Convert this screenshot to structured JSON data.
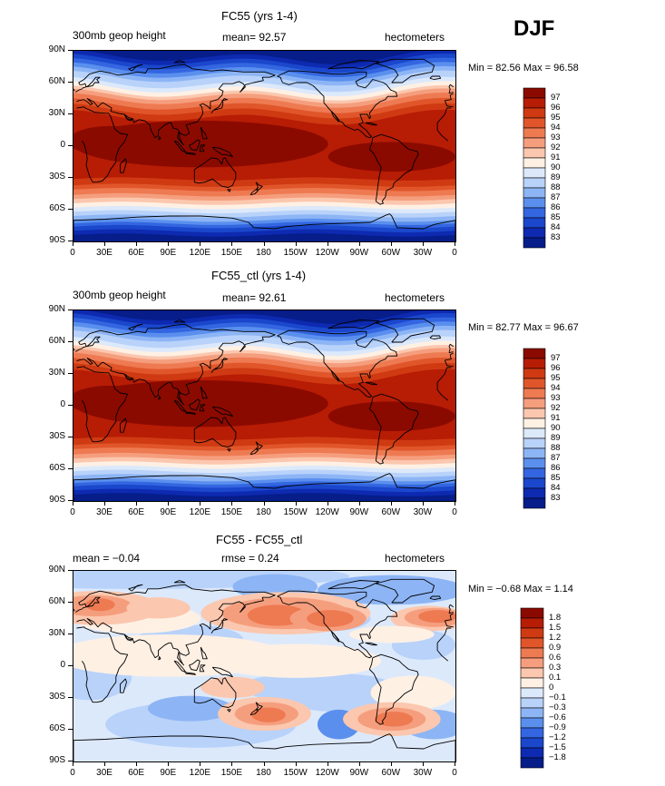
{
  "season": "DJF",
  "x_tick_labels": [
    "0",
    "30E",
    "60E",
    "90E",
    "120E",
    "150E",
    "180",
    "150W",
    "120W",
    "90W",
    "60W",
    "30W",
    "0"
  ],
  "y_tick_labels": [
    "90N",
    "60N",
    "30N",
    "0",
    "30S",
    "60S",
    "90S"
  ],
  "panels": [
    {
      "title": "FC55 (yrs 1-4)",
      "left_header": "300mb geop height",
      "mid_header": "mean=  92.57",
      "right_header": "hectometers",
      "minmax": "Min =  82.56 Max =  96.58",
      "colorbar": {
        "labels": [
          "97",
          "96",
          "95",
          "94",
          "93",
          "92",
          "91",
          "90",
          "89",
          "88",
          "87",
          "86",
          "85",
          "84",
          "83"
        ],
        "colors": [
          "#8b0a00",
          "#b71c05",
          "#cf3a12",
          "#e0562a",
          "#ee7a52",
          "#f59e7e",
          "#fbc7ae",
          "#fff0e4",
          "#dce9fb",
          "#b8d2fa",
          "#8db5f5",
          "#5a8fee",
          "#3366e0",
          "#1a47cc",
          "#0d2ab0",
          "#061d8a"
        ]
      }
    },
    {
      "title": "FC55_ctl (yrs 1-4)",
      "left_header": "300mb geop height",
      "mid_header": "mean=  92.61",
      "right_header": "hectometers",
      "minmax": "Min =  82.77 Max =  96.67",
      "colorbar": {
        "labels": [
          "97",
          "96",
          "95",
          "94",
          "93",
          "92",
          "91",
          "90",
          "89",
          "88",
          "87",
          "86",
          "85",
          "84",
          "83"
        ],
        "colors": [
          "#8b0a00",
          "#b71c05",
          "#cf3a12",
          "#e0562a",
          "#ee7a52",
          "#f59e7e",
          "#fbc7ae",
          "#fff0e4",
          "#dce9fb",
          "#b8d2fa",
          "#8db5f5",
          "#5a8fee",
          "#3366e0",
          "#1a47cc",
          "#0d2ab0",
          "#061d8a"
        ]
      }
    },
    {
      "title": "FC55 - FC55_ctl",
      "left_header": "mean =  −0.04",
      "mid_header": "rmse =   0.24",
      "right_header": "hectometers",
      "minmax": "Min =  −0.68 Max =   1.14",
      "colorbar": {
        "labels": [
          "1.8",
          "1.5",
          "1.2",
          "0.9",
          "0.6",
          "0.3",
          "0.1",
          "0",
          "−0.1",
          "−0.3",
          "−0.6",
          "−0.9",
          "−1.2",
          "−1.5",
          "−1.8"
        ],
        "colors": [
          "#8b0a00",
          "#b71c05",
          "#cf3a12",
          "#e0562a",
          "#ee7a52",
          "#f59e7e",
          "#fbc7ae",
          "#fff0e4",
          "#dce9fb",
          "#b8d2fa",
          "#8db5f5",
          "#5a8fee",
          "#3366e0",
          "#1a47cc",
          "#0d2ab0",
          "#061d8a"
        ]
      }
    }
  ]
}
